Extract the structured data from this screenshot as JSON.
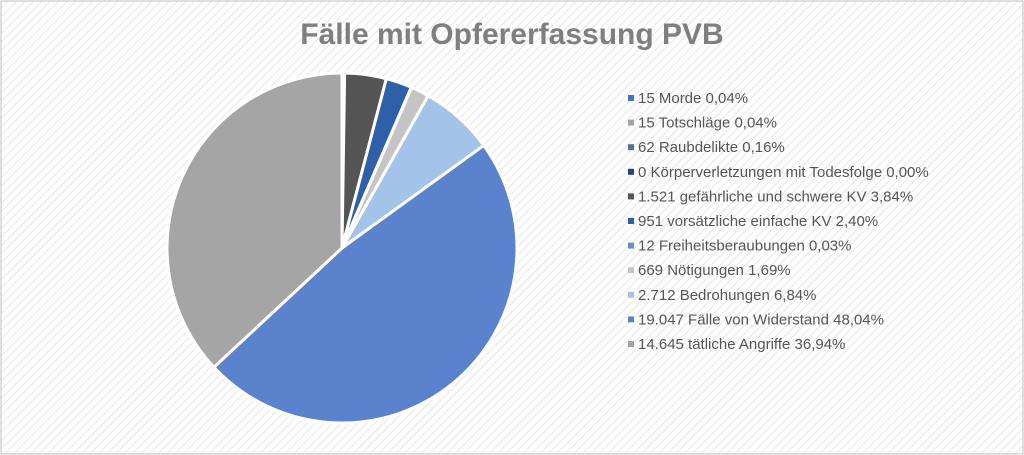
{
  "chart_data": {
    "type": "pie",
    "title": "Fälle mit Opfererfassung PVB",
    "categories": [
      "15 Morde 0,04%",
      "15 Totschläge 0,04%",
      "62 Raubdelikte 0,16%",
      "0 Körperverletzungen mit Todesfolge 0,00%",
      "1.521 gefährliche und schwere KV 3,84%",
      "951 vorsätzliche einfache KV 2,40%",
      "12 Freiheitsberaubungen 0,03%",
      "669 Nötigungen 1,69%",
      "2.712 Bedrohungen 6,84%",
      "19.047 Fälle von Widerstand 48,04%",
      "14.645 tätliche Angriffe 36,94%"
    ],
    "values": [
      0.04,
      0.04,
      0.16,
      0.0,
      3.84,
      2.4,
      0.03,
      1.69,
      6.84,
      48.04,
      36.94
    ],
    "colors": [
      "#4472c4",
      "#a5a5a5",
      "#5a6f94",
      "#264478",
      "#555555",
      "#2e5fa8",
      "#698ed0",
      "#c4c4c4",
      "#a3c4e8",
      "#5b82cc",
      "#a5a5a5"
    ],
    "legend": "right"
  }
}
